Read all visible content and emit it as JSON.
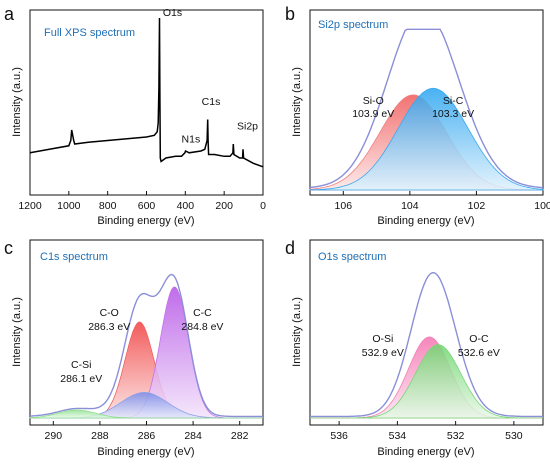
{
  "chart_data": [
    {
      "panel": "a",
      "type": "line",
      "title": "Full XPS spectrum",
      "xlabel": "Binding energy (eV)",
      "ylabel": "Intensity (a.u.)",
      "xlim": [
        1200,
        0
      ],
      "xticks": [
        1200,
        1000,
        800,
        600,
        400,
        200,
        0
      ],
      "reversed_x": true,
      "grid": false,
      "series": [
        {
          "color": "#000000",
          "x": [
            1200,
            1100,
            1000,
            990,
            985,
            980,
            975,
            970,
            900,
            800,
            700,
            600,
            560,
            545,
            540,
            536,
            533,
            531,
            529,
            525,
            500,
            450,
            420,
            402,
            399,
            380,
            320,
            300,
            288,
            285,
            283,
            280,
            250,
            200,
            170,
            155,
            153,
            150,
            120,
            105,
            103,
            100,
            50,
            0
          ],
          "y": [
            0.23,
            0.25,
            0.27,
            0.3,
            0.36,
            0.33,
            0.3,
            0.28,
            0.29,
            0.3,
            0.31,
            0.32,
            0.33,
            0.35,
            0.4,
            0.6,
            1.0,
            0.55,
            0.2,
            0.18,
            0.2,
            0.21,
            0.21,
            0.23,
            0.24,
            0.23,
            0.24,
            0.25,
            0.3,
            0.42,
            0.3,
            0.22,
            0.22,
            0.21,
            0.21,
            0.23,
            0.28,
            0.22,
            0.2,
            0.2,
            0.25,
            0.2,
            0.17,
            0.15
          ]
        }
      ],
      "annotations": [
        {
          "text": "O1s",
          "x": 531,
          "y": 1.0
        },
        {
          "text": "N1s",
          "x": 399,
          "y": 0.3
        },
        {
          "text": "C1s",
          "x": 285,
          "y": 0.47
        },
        {
          "text": "Si2p",
          "x": 103,
          "y": 0.33
        }
      ]
    },
    {
      "panel": "b",
      "type": "area",
      "title": "Si2p spectrum",
      "xlabel": "Binding energy (eV)",
      "ylabel": "Intensity (a.u.)",
      "xlim": [
        107,
        100
      ],
      "xticks": [
        106,
        104,
        102,
        100
      ],
      "reversed_x": true,
      "grid": false,
      "series": [
        {
          "name": "Si-O",
          "center": 103.9,
          "height": 0.58,
          "width": 1.0,
          "color": "#f08080"
        },
        {
          "name": "Si-C",
          "center": 103.3,
          "height": 0.62,
          "width": 1.05,
          "color": "#39a9ef"
        }
      ],
      "envelope": {
        "color": "#8a8fd8"
      },
      "annotations": [
        {
          "text": "Si-O",
          "x": 105.1
        },
        {
          "text": "103.9 eV",
          "x": 105.1
        },
        {
          "text": "Si-C",
          "x": 102.7
        },
        {
          "text": "103.3 eV",
          "x": 102.7
        }
      ]
    },
    {
      "panel": "c",
      "type": "area",
      "title": "C1s spectrum",
      "xlabel": "Binding energy (eV)",
      "ylabel": "Intensity (a.u.)",
      "xlim": [
        291,
        281
      ],
      "xticks": [
        290,
        288,
        286,
        284,
        282
      ],
      "reversed_x": true,
      "grid": false,
      "series": [
        {
          "name": "C-O",
          "center": 286.3,
          "height": 0.6,
          "width": 0.62,
          "color": "#f06060"
        },
        {
          "name": "C-C",
          "center": 284.8,
          "height": 0.82,
          "width": 0.6,
          "color": "#c272e8"
        },
        {
          "name": "C-Si",
          "center": 286.1,
          "height": 0.16,
          "width": 1.0,
          "color": "#8fa0e8"
        },
        {
          "name": "",
          "center": 289.0,
          "height": 0.05,
          "width": 0.8,
          "color": "#8fe08f"
        }
      ],
      "envelope": {
        "color": "#8a8fd8"
      },
      "annotations": [
        {
          "text": "C-O",
          "x": 287.6
        },
        {
          "text": "286.3 eV",
          "x": 287.6
        },
        {
          "text": "C-C",
          "x": 283.6
        },
        {
          "text": "284.8 eV",
          "x": 283.6
        },
        {
          "text": "C-Si",
          "x": 288.8
        },
        {
          "text": "286.1 eV",
          "x": 288.8
        }
      ]
    },
    {
      "panel": "d",
      "type": "area",
      "title": "O1s spectrum",
      "xlabel": "Binding energy (eV)",
      "ylabel": "Intensity (a.u.)",
      "xlim": [
        537,
        529
      ],
      "xticks": [
        536,
        534,
        532,
        530
      ],
      "reversed_x": true,
      "grid": false,
      "series": [
        {
          "name": "O-Si",
          "center": 532.9,
          "height": 0.52,
          "width": 0.72,
          "color": "#f47fb4"
        },
        {
          "name": "O-C",
          "center": 532.6,
          "height": 0.47,
          "width": 0.78,
          "color": "#78d878"
        }
      ],
      "envelope": {
        "color": "#8a8fd8"
      },
      "annotations": [
        {
          "text": "O-Si",
          "x": 534.5
        },
        {
          "text": "532.9 eV",
          "x": 534.5
        },
        {
          "text": "O-C",
          "x": 531.2
        },
        {
          "text": "532.6 eV",
          "x": 531.2
        }
      ]
    }
  ]
}
